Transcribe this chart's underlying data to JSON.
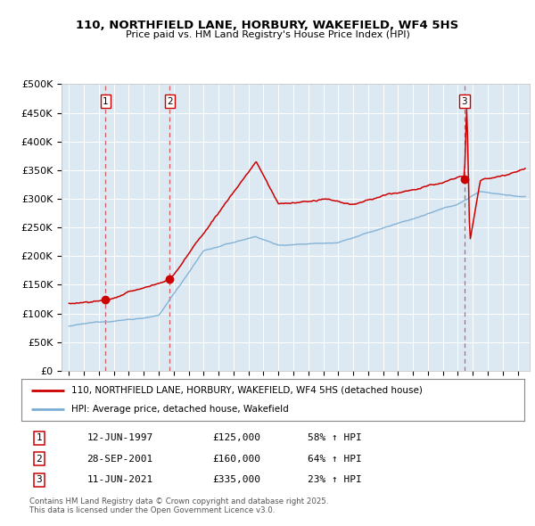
{
  "title1": "110, NORTHFIELD LANE, HORBURY, WAKEFIELD, WF4 5HS",
  "title2": "Price paid vs. HM Land Registry's House Price Index (HPI)",
  "background_color": "#dce8f2",
  "sale_dates": [
    1997.45,
    2001.74,
    2021.44
  ],
  "sale_prices": [
    125000,
    160000,
    335000
  ],
  "sale_labels": [
    "1",
    "2",
    "3"
  ],
  "legend_line1": "110, NORTHFIELD LANE, HORBURY, WAKEFIELD, WF4 5HS (detached house)",
  "legend_line2": "HPI: Average price, detached house, Wakefield",
  "table_rows": [
    [
      "1",
      "12-JUN-1997",
      "£125,000",
      "58% ↑ HPI"
    ],
    [
      "2",
      "28-SEP-2001",
      "£160,000",
      "64% ↑ HPI"
    ],
    [
      "3",
      "11-JUN-2021",
      "£335,000",
      "23% ↑ HPI"
    ]
  ],
  "footer": "Contains HM Land Registry data © Crown copyright and database right 2025.\nThis data is licensed under the Open Government Licence v3.0.",
  "red_color": "#cc0000",
  "blue_color": "#7aadd4",
  "ylim": [
    0,
    500000
  ],
  "yticks": [
    0,
    50000,
    100000,
    150000,
    200000,
    250000,
    300000,
    350000,
    400000,
    450000,
    500000
  ],
  "xlim": [
    1994.5,
    2025.8
  ]
}
